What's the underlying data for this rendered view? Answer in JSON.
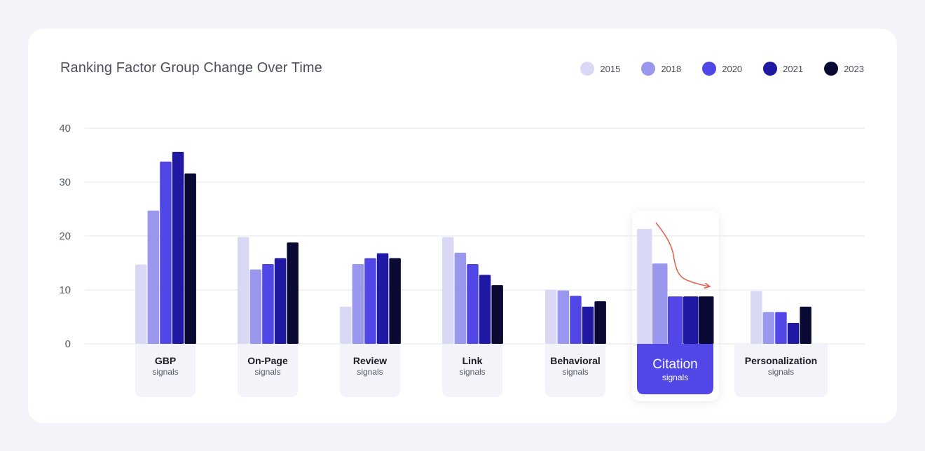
{
  "chart_data": {
    "type": "bar",
    "title": "Ranking Factor Group Change Over Time",
    "ylim": [
      0,
      40
    ],
    "yticks": [
      0,
      10,
      20,
      30,
      40
    ],
    "grid": true,
    "legend_position": "top-right",
    "categories": [
      {
        "name": "GBP",
        "sub": "signals"
      },
      {
        "name": "On-Page",
        "sub": "signals"
      },
      {
        "name": "Review",
        "sub": "signals"
      },
      {
        "name": "Link",
        "sub": "signals"
      },
      {
        "name": "Behavioral",
        "sub": "signals"
      },
      {
        "name": "Citation",
        "sub": "signals"
      },
      {
        "name": "Personalization",
        "sub": "signals"
      }
    ],
    "highlighted_category": "Citation",
    "series": [
      {
        "name": "2015",
        "color": "#d9d9f6",
        "values": [
          14.7,
          19.8,
          6.9,
          19.8,
          10,
          21.3,
          9.8
        ]
      },
      {
        "name": "2018",
        "color": "#9a98ee",
        "values": [
          24.7,
          13.8,
          14.8,
          16.9,
          9.9,
          14.9,
          5.9
        ]
      },
      {
        "name": "2020",
        "color": "#5147e6",
        "values": [
          33.8,
          14.8,
          15.9,
          14.8,
          8.9,
          8.8,
          5.9
        ]
      },
      {
        "name": "2021",
        "color": "#1e18a2",
        "values": [
          35.6,
          15.9,
          16.8,
          12.8,
          6.9,
          8.8,
          3.9
        ]
      },
      {
        "name": "2023",
        "color": "#0a0934",
        "values": [
          31.6,
          18.8,
          15.9,
          10.9,
          7.9,
          8.8,
          6.9
        ]
      }
    ]
  }
}
